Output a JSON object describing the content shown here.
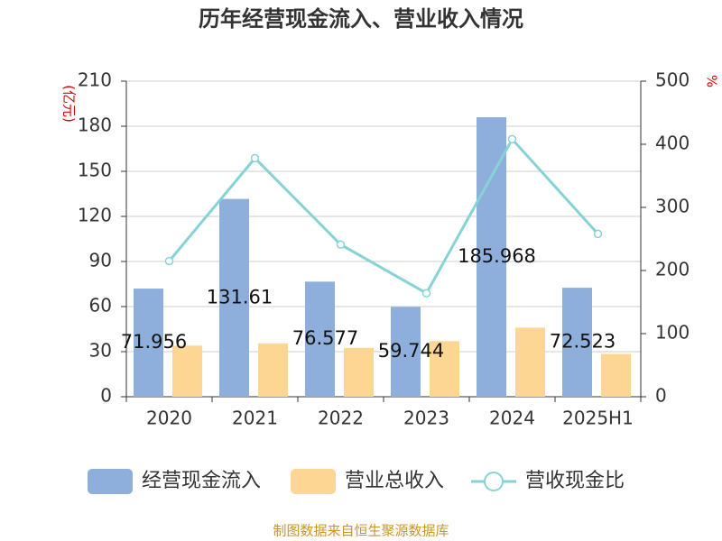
{
  "chart_data": {
    "type": "bar_line",
    "title": "历年经营现金流入、营业收入情况",
    "y_label": "(亿元)",
    "y2_label": "%",
    "categories": [
      "2020",
      "2021",
      "2022",
      "2023",
      "2024",
      "2025H1"
    ],
    "series": [
      {
        "name": "经营现金流入",
        "color": "#8eaedb",
        "type": "bar",
        "values": [
          71.956,
          131.61,
          76.577,
          59.744,
          185.968,
          72.523
        ],
        "show_labels": true
      },
      {
        "name": "营业总收入",
        "color": "#fdd693",
        "type": "bar",
        "values": [
          34,
          35.5,
          32.5,
          37,
          46,
          28.5
        ]
      },
      {
        "name": "营收现金比",
        "color": "#86d3d6",
        "type": "line",
        "axis": "y2",
        "values": [
          215,
          378,
          241,
          164,
          408,
          258
        ]
      }
    ],
    "ylim": [
      0,
      210
    ],
    "yticks": [
      0,
      30,
      60,
      90,
      120,
      150,
      180,
      210
    ],
    "y2lim": [
      0,
      500
    ],
    "y2ticks": [
      0,
      100,
      200,
      300,
      400,
      500
    ],
    "grid": true,
    "source": "制图数据来自恒生聚源数据库"
  }
}
